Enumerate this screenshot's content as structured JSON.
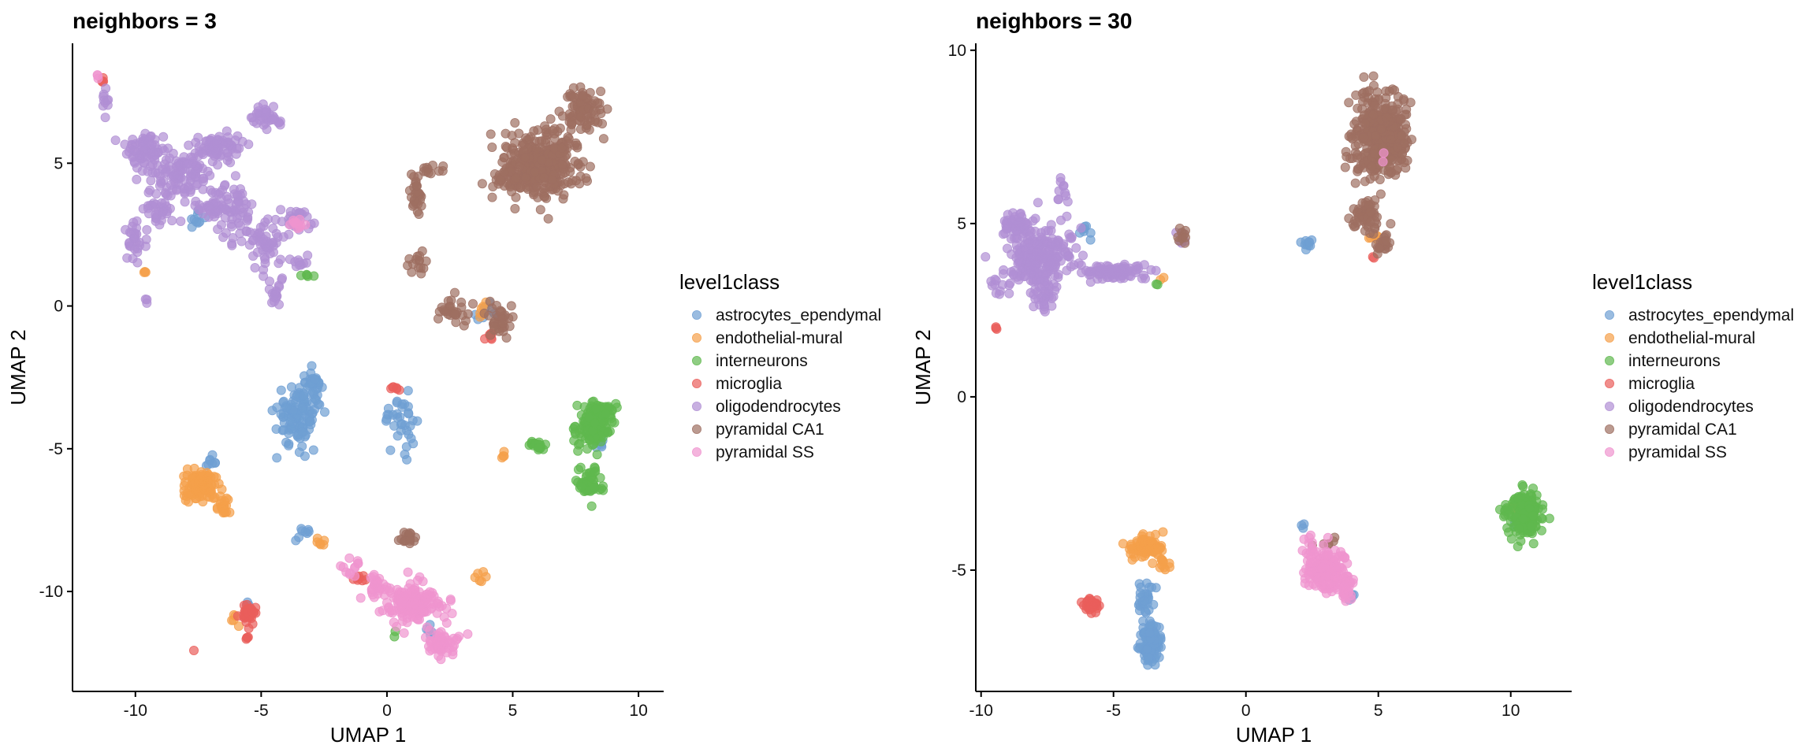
{
  "chart_data": [
    {
      "type": "scatter",
      "title": "neighbors = 3",
      "xlabel": "UMAP 1",
      "ylabel": "UMAP 2",
      "xlim": [
        -12.5,
        11
      ],
      "ylim": [
        -13.5,
        9.2
      ],
      "xticks": [
        -10,
        -5,
        0,
        5,
        10
      ],
      "yticks": [
        5,
        0,
        -5,
        -10
      ],
      "legend": {
        "title": "level1class",
        "placement": "right",
        "entries": [
          "astrocytes_ependymal",
          "endothelial-mural",
          "interneurons",
          "microglia",
          "oligodendrocytes",
          "pyramidal CA1",
          "pyramidal SS"
        ]
      },
      "series": [
        {
          "name": "astrocytes_ependymal",
          "color": "#6f9fd3",
          "clusters": [
            [
              -3.5,
              -3.8,
              0.8,
              1.0,
              120
            ],
            [
              -2.9,
              -2.7,
              0.3,
              0.4,
              25
            ],
            [
              0.5,
              -4.0,
              0.6,
              0.8,
              35
            ],
            [
              4.0,
              -0.3,
              0.4,
              0.3,
              10
            ],
            [
              -7.6,
              3.0,
              0.3,
              0.3,
              10
            ],
            [
              -3.3,
              -7.9,
              0.3,
              0.2,
              8
            ],
            [
              -7.0,
              -5.5,
              0.3,
              0.2,
              8
            ],
            [
              -5.5,
              -10.5,
              0.1,
              0.1,
              3
            ],
            [
              1.7,
              -11.4,
              0.2,
              0.2,
              5
            ],
            [
              8.5,
              -4.8,
              0.3,
              0.3,
              6
            ]
          ]
        },
        {
          "name": "endothelial-mural",
          "color": "#f5a04a",
          "clusters": [
            [
              -7.4,
              -6.3,
              0.7,
              0.5,
              90
            ],
            [
              -6.5,
              -7.0,
              0.3,
              0.3,
              20
            ],
            [
              -9.6,
              1.2,
              0.1,
              0.1,
              3
            ],
            [
              -6.1,
              -11.0,
              0.2,
              0.2,
              5
            ],
            [
              3.8,
              -0.1,
              0.2,
              0.2,
              6
            ],
            [
              3.7,
              -9.5,
              0.2,
              0.2,
              6
            ],
            [
              -2.5,
              -8.3,
              0.3,
              0.2,
              6
            ],
            [
              4.6,
              -5.3,
              0.2,
              0.2,
              4
            ]
          ]
        },
        {
          "name": "interneurons",
          "color": "#5fb84e",
          "clusters": [
            [
              8.2,
              -4.2,
              0.6,
              0.7,
              110
            ],
            [
              8.5,
              -3.7,
              0.5,
              0.3,
              45
            ],
            [
              8.0,
              -6.2,
              0.5,
              0.5,
              50
            ],
            [
              6.0,
              -4.9,
              0.4,
              0.2,
              20
            ],
            [
              -3.0,
              1.1,
              0.3,
              0.1,
              5
            ],
            [
              0.3,
              -11.5,
              0.1,
              0.1,
              2
            ]
          ]
        },
        {
          "name": "microglia",
          "color": "#ea5e5b",
          "clusters": [
            [
              -5.5,
              -10.8,
              0.3,
              0.3,
              35
            ],
            [
              -5.6,
              -11.6,
              0.1,
              0.1,
              4
            ],
            [
              -7.7,
              -12.1,
              0.05,
              0.05,
              1
            ],
            [
              0.3,
              -2.9,
              0.2,
              0.1,
              6
            ],
            [
              4.0,
              -1.0,
              0.2,
              0.2,
              6
            ],
            [
              -11.3,
              7.9,
              0.1,
              0.1,
              4
            ],
            [
              -1.0,
              -9.5,
              0.3,
              0.2,
              8
            ]
          ]
        },
        {
          "name": "oligodendrocytes",
          "color": "#b08fd4",
          "clusters": [
            [
              -9.5,
              5.5,
              0.8,
              0.6,
              70
            ],
            [
              -8.2,
              4.6,
              1.0,
              0.7,
              110
            ],
            [
              -6.6,
              5.6,
              0.8,
              0.5,
              70
            ],
            [
              -6.0,
              3.2,
              0.6,
              1.0,
              55
            ],
            [
              -4.8,
              2.2,
              0.7,
              0.7,
              50
            ],
            [
              -4.4,
              0.4,
              0.4,
              0.4,
              18
            ],
            [
              -4.8,
              6.6,
              0.5,
              0.4,
              35
            ],
            [
              -3.6,
              3.0,
              0.5,
              0.4,
              30
            ],
            [
              -10.0,
              2.3,
              0.5,
              0.7,
              30
            ],
            [
              -9.0,
              3.3,
              0.6,
              0.4,
              30
            ],
            [
              -11.2,
              7.2,
              0.2,
              0.5,
              10
            ],
            [
              -9.6,
              0.2,
              0.1,
              0.2,
              3
            ],
            [
              -3.5,
              1.6,
              0.4,
              0.2,
              10
            ],
            [
              -7.0,
              3.5,
              0.6,
              0.5,
              35
            ]
          ]
        },
        {
          "name": "pyramidal CA1",
          "color": "#9e6f61",
          "clusters": [
            [
              6.2,
              5.0,
              1.4,
              1.1,
              340
            ],
            [
              7.8,
              6.9,
              0.7,
              0.6,
              80
            ],
            [
              4.8,
              4.4,
              0.6,
              0.4,
              40
            ],
            [
              1.2,
              4.0,
              0.3,
              0.8,
              30
            ],
            [
              1.2,
              1.5,
              0.3,
              0.4,
              15
            ],
            [
              2.6,
              -0.1,
              0.6,
              0.4,
              30
            ],
            [
              4.4,
              -0.5,
              0.5,
              0.6,
              35
            ],
            [
              0.8,
              -8.1,
              0.4,
              0.2,
              20
            ],
            [
              1.8,
              4.7,
              0.4,
              0.2,
              10
            ]
          ]
        },
        {
          "name": "pyramidal SS",
          "color": "#ef94cf",
          "clusters": [
            [
              1.0,
              -10.4,
              1.0,
              0.6,
              160
            ],
            [
              2.2,
              -11.8,
              0.6,
              0.4,
              50
            ],
            [
              -0.4,
              -9.8,
              0.4,
              0.3,
              25
            ],
            [
              -1.5,
              -9.1,
              0.4,
              0.3,
              12
            ],
            [
              -3.5,
              2.9,
              0.3,
              0.2,
              10
            ],
            [
              -11.5,
              8.0,
              0.1,
              0.1,
              3
            ]
          ]
        }
      ]
    },
    {
      "type": "scatter",
      "title": "neighbors = 30",
      "xlabel": "UMAP 1",
      "ylabel": "UMAP 2",
      "xlim": [
        -10.2,
        12.3
      ],
      "ylim": [
        -8.5,
        10.2
      ],
      "xticks": [
        -10,
        -5,
        0,
        5,
        10
      ],
      "yticks": [
        10,
        5,
        0,
        -5
      ],
      "legend": {
        "title": "level1class",
        "placement": "right",
        "entries": [
          "astrocytes_ependymal",
          "endothelial-mural",
          "interneurons",
          "microglia",
          "oligodendrocytes",
          "pyramidal CA1",
          "pyramidal SS"
        ]
      },
      "series": [
        {
          "name": "astrocytes_ependymal",
          "color": "#6f9fd3",
          "clusters": [
            [
              -3.6,
              -7.1,
              0.3,
              0.5,
              120
            ],
            [
              -3.8,
              -5.8,
              0.3,
              0.4,
              30
            ],
            [
              2.3,
              4.4,
              0.2,
              0.2,
              10
            ],
            [
              -6.0,
              4.8,
              0.3,
              0.3,
              8
            ],
            [
              2.1,
              -3.7,
              0.1,
              0.1,
              3
            ],
            [
              10.3,
              -3.5,
              0.3,
              0.3,
              10
            ],
            [
              4.0,
              -5.8,
              0.2,
              0.1,
              5
            ]
          ]
        },
        {
          "name": "endothelial-mural",
          "color": "#f5a04a",
          "clusters": [
            [
              -3.8,
              -4.3,
              0.6,
              0.3,
              90
            ],
            [
              -3.1,
              -4.8,
              0.2,
              0.2,
              10
            ],
            [
              4.8,
              4.7,
              0.2,
              0.2,
              6
            ],
            [
              10.2,
              -3.2,
              0.2,
              0.2,
              6
            ],
            [
              -3.2,
              3.4,
              0.1,
              0.1,
              2
            ]
          ]
        },
        {
          "name": "interneurons",
          "color": "#5fb84e",
          "clusters": [
            [
              10.6,
              -3.4,
              0.5,
              0.6,
              160
            ],
            [
              9.8,
              -3.3,
              0.2,
              0.2,
              10
            ],
            [
              -3.3,
              3.2,
              0.1,
              0.1,
              2
            ]
          ]
        },
        {
          "name": "microglia",
          "color": "#ea5e5b",
          "clusters": [
            [
              -5.8,
              -6.0,
              0.3,
              0.2,
              35
            ],
            [
              -9.5,
              2.0,
              0.1,
              0.1,
              3
            ],
            [
              4.8,
              4.0,
              0.1,
              0.1,
              2
            ]
          ]
        },
        {
          "name": "oligodendrocytes",
          "color": "#b08fd4",
          "clusters": [
            [
              -7.8,
              4.0,
              1.1,
              0.9,
              250
            ],
            [
              -5.0,
              3.6,
              1.1,
              0.2,
              90
            ],
            [
              -8.7,
              5.0,
              0.4,
              0.3,
              50
            ],
            [
              -7.6,
              2.8,
              0.3,
              0.4,
              20
            ],
            [
              -7.0,
              6.0,
              0.2,
              0.4,
              10
            ],
            [
              -9.5,
              3.2,
              0.2,
              0.3,
              8
            ],
            [
              -2.5,
              4.6,
              0.2,
              0.2,
              5
            ]
          ]
        },
        {
          "name": "pyramidal CA1",
          "color": "#9e6f61",
          "clusters": [
            [
              5.1,
              7.5,
              0.9,
              1.1,
              420
            ],
            [
              4.5,
              5.2,
              0.6,
              0.4,
              60
            ],
            [
              5.2,
              4.4,
              0.3,
              0.2,
              25
            ],
            [
              -2.4,
              4.6,
              0.2,
              0.2,
              10
            ],
            [
              3.0,
              -4.2,
              0.3,
              0.1,
              6
            ]
          ]
        },
        {
          "name": "pyramidal SS",
          "color": "#ef94cf",
          "clusters": [
            [
              3.0,
              -5.0,
              0.7,
              0.5,
              170
            ],
            [
              3.8,
              -5.5,
              0.3,
              0.3,
              30
            ],
            [
              2.4,
              -4.3,
              0.2,
              0.3,
              12
            ],
            [
              5.2,
              7.0,
              0.1,
              0.2,
              2
            ]
          ]
        }
      ]
    }
  ]
}
